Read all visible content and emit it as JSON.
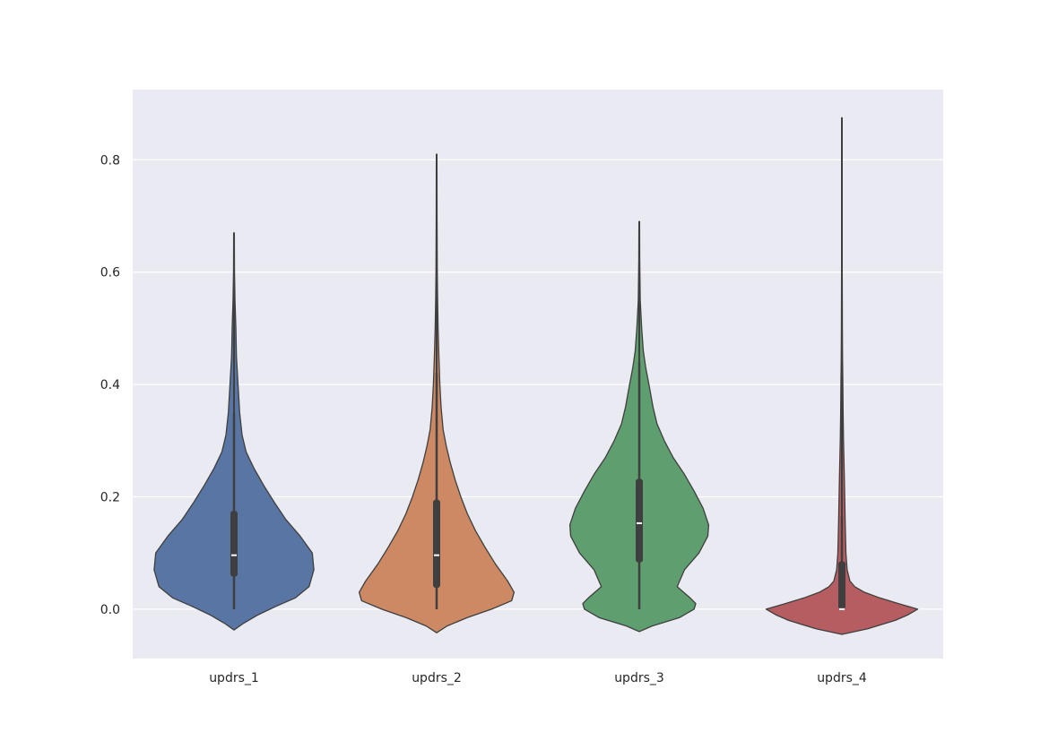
{
  "chart_data": {
    "type": "violin",
    "title": "",
    "xlabel": "",
    "ylabel": "",
    "categories": [
      "updrs_1",
      "updrs_2",
      "updrs_3",
      "updrs_4"
    ],
    "ylim": [
      -0.088,
      0.925
    ],
    "yticks": [
      0.0,
      0.2,
      0.4,
      0.6,
      0.8
    ],
    "ytick_labels": [
      "0.0",
      "0.2",
      "0.4",
      "0.6",
      "0.8"
    ],
    "grid": true,
    "legend": "none",
    "colors": [
      "#5875a4",
      "#cc8963",
      "#5f9e6e",
      "#b55d60"
    ],
    "background": "#eaeaf2",
    "series": [
      {
        "category": "updrs_1",
        "min": 0.0,
        "q1": 0.058,
        "median": 0.096,
        "q3": 0.175,
        "whisker_high": 0.348,
        "max": 0.67,
        "kde_min": -0.037,
        "kde_max": 0.67,
        "profile": [
          [
            -0.037,
            0.0
          ],
          [
            -0.025,
            0.12
          ],
          [
            -0.01,
            0.3
          ],
          [
            0.005,
            0.52
          ],
          [
            0.02,
            0.76
          ],
          [
            0.04,
            0.93
          ],
          [
            0.07,
            0.99
          ],
          [
            0.1,
            0.97
          ],
          [
            0.13,
            0.82
          ],
          [
            0.16,
            0.64
          ],
          [
            0.19,
            0.5
          ],
          [
            0.22,
            0.37
          ],
          [
            0.25,
            0.25
          ],
          [
            0.28,
            0.15
          ],
          [
            0.31,
            0.1
          ],
          [
            0.35,
            0.07
          ],
          [
            0.4,
            0.05
          ],
          [
            0.45,
            0.03
          ],
          [
            0.5,
            0.023
          ],
          [
            0.55,
            0.012
          ],
          [
            0.6,
            0.006
          ],
          [
            0.67,
            0.004
          ]
        ]
      },
      {
        "category": "updrs_2",
        "min": 0.0,
        "q1": 0.038,
        "median": 0.096,
        "q3": 0.195,
        "whisker_high": 0.42,
        "max": 0.81,
        "kde_min": -0.042,
        "kde_max": 0.81,
        "profile": [
          [
            -0.042,
            0.0
          ],
          [
            -0.03,
            0.13
          ],
          [
            -0.015,
            0.38
          ],
          [
            0.0,
            0.68
          ],
          [
            0.015,
            0.93
          ],
          [
            0.03,
            0.96
          ],
          [
            0.05,
            0.88
          ],
          [
            0.08,
            0.73
          ],
          [
            0.11,
            0.6
          ],
          [
            0.14,
            0.48
          ],
          [
            0.17,
            0.38
          ],
          [
            0.2,
            0.3
          ],
          [
            0.23,
            0.23
          ],
          [
            0.26,
            0.17
          ],
          [
            0.29,
            0.12
          ],
          [
            0.32,
            0.08
          ],
          [
            0.36,
            0.055
          ],
          [
            0.4,
            0.04
          ],
          [
            0.45,
            0.028
          ],
          [
            0.5,
            0.018
          ],
          [
            0.55,
            0.012
          ],
          [
            0.6,
            0.008
          ],
          [
            0.7,
            0.005
          ],
          [
            0.81,
            0.004
          ]
        ]
      },
      {
        "category": "updrs_3",
        "min": 0.0,
        "q1": 0.083,
        "median": 0.153,
        "q3": 0.232,
        "whisker_high": 0.44,
        "max": 0.69,
        "kde_min": -0.04,
        "kde_max": 0.69,
        "profile": [
          [
            -0.04,
            0.0
          ],
          [
            -0.03,
            0.16
          ],
          [
            -0.015,
            0.5
          ],
          [
            0.0,
            0.68
          ],
          [
            0.01,
            0.7
          ],
          [
            0.02,
            0.63
          ],
          [
            0.04,
            0.47
          ],
          [
            0.07,
            0.56
          ],
          [
            0.1,
            0.74
          ],
          [
            0.13,
            0.85
          ],
          [
            0.15,
            0.86
          ],
          [
            0.18,
            0.79
          ],
          [
            0.21,
            0.68
          ],
          [
            0.24,
            0.56
          ],
          [
            0.27,
            0.42
          ],
          [
            0.3,
            0.31
          ],
          [
            0.33,
            0.22
          ],
          [
            0.36,
            0.17
          ],
          [
            0.4,
            0.12
          ],
          [
            0.43,
            0.08
          ],
          [
            0.46,
            0.05
          ],
          [
            0.5,
            0.03
          ],
          [
            0.55,
            0.012
          ],
          [
            0.62,
            0.006
          ],
          [
            0.69,
            0.004
          ]
        ]
      },
      {
        "category": "updrs_4",
        "min": 0.0,
        "q1": 0.0,
        "median": 0.0,
        "q3": 0.085,
        "whisker_high": 0.165,
        "max": 0.875,
        "kde_min": -0.045,
        "kde_max": 0.875,
        "profile": [
          [
            -0.045,
            0.0
          ],
          [
            -0.035,
            0.32
          ],
          [
            -0.02,
            0.66
          ],
          [
            -0.01,
            0.82
          ],
          [
            0.0,
            0.94
          ],
          [
            0.01,
            0.7
          ],
          [
            0.02,
            0.47
          ],
          [
            0.03,
            0.28
          ],
          [
            0.04,
            0.16
          ],
          [
            0.05,
            0.1
          ],
          [
            0.07,
            0.065
          ],
          [
            0.1,
            0.05
          ],
          [
            0.13,
            0.045
          ],
          [
            0.16,
            0.04
          ],
          [
            0.2,
            0.035
          ],
          [
            0.25,
            0.028
          ],
          [
            0.3,
            0.02
          ],
          [
            0.35,
            0.015
          ],
          [
            0.4,
            0.012
          ],
          [
            0.45,
            0.008
          ],
          [
            0.5,
            0.006
          ],
          [
            0.6,
            0.004
          ],
          [
            0.7,
            0.003
          ],
          [
            0.875,
            0.002
          ]
        ]
      }
    ]
  }
}
